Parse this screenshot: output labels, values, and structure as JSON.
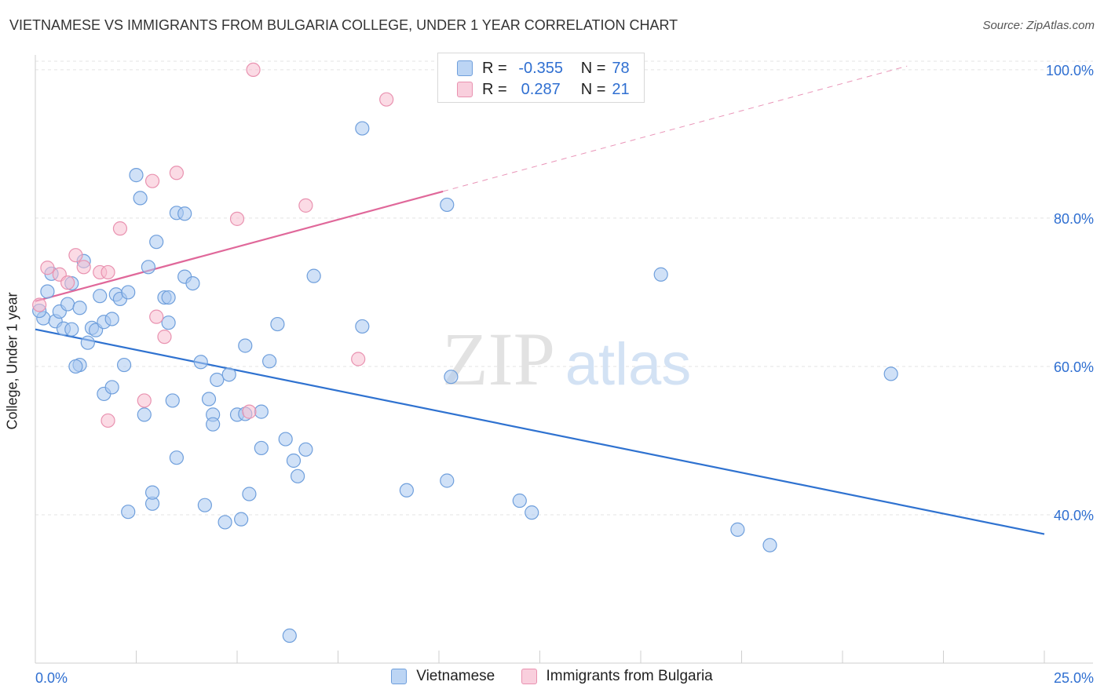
{
  "title": "VIETNAMESE VS IMMIGRANTS FROM BULGARIA COLLEGE, UNDER 1 YEAR CORRELATION CHART",
  "source": "Source: ZipAtlas.com",
  "watermark": {
    "zip": "ZIP",
    "atlas": "atlas"
  },
  "legend_top": {
    "rows": [
      {
        "r_label": "R =",
        "r_value": "-0.355",
        "n_label": "N =",
        "n_value": "78",
        "color": "#a9c8f0",
        "border": "#6f9fdc"
      },
      {
        "r_label": "R =",
        "r_value": "0.287",
        "n_label": "N =",
        "n_value": "21",
        "color": "#f7bdd0",
        "border": "#e992b0"
      }
    ]
  },
  "chart_data": {
    "type": "scatter",
    "title": "VIETNAMESE VS IMMIGRANTS FROM BULGARIA COLLEGE, UNDER 1 YEAR CORRELATION CHART",
    "xlabel": "",
    "ylabel": "College, Under 1 year",
    "xlim": [
      0,
      25
    ],
    "ylim": [
      20,
      102
    ],
    "x_tick_labels": [
      "0.0%",
      "25.0%"
    ],
    "y_ticks": [
      40,
      60,
      80,
      100
    ],
    "y_tick_labels": [
      "40.0%",
      "60.0%",
      "80.0%",
      "100.0%"
    ],
    "grid": true,
    "series": [
      {
        "name": "Vietnamese",
        "color": "#a9c8f0",
        "stroke": "#6f9fdc",
        "trend_color": "#2f72d0",
        "trend": {
          "x0": 0,
          "y0": 65.0,
          "x1": 25,
          "y1": 37.4
        },
        "points": [
          [
            0.2,
            66.5
          ],
          [
            0.3,
            70.1
          ],
          [
            0.4,
            72.5
          ],
          [
            0.5,
            66.1
          ],
          [
            0.6,
            67.4
          ],
          [
            0.7,
            65.1
          ],
          [
            0.8,
            68.4
          ],
          [
            0.9,
            65.0
          ],
          [
            0.9,
            71.2
          ],
          [
            1.1,
            60.2
          ],
          [
            1.1,
            67.9
          ],
          [
            1.2,
            74.2
          ],
          [
            1.3,
            63.2
          ],
          [
            1.4,
            65.2
          ],
          [
            1.5,
            64.9
          ],
          [
            1.6,
            69.5
          ],
          [
            1.7,
            66.0
          ],
          [
            1.7,
            56.3
          ],
          [
            1.9,
            66.4
          ],
          [
            1.9,
            57.2
          ],
          [
            2.0,
            69.7
          ],
          [
            2.1,
            69.1
          ],
          [
            2.2,
            60.2
          ],
          [
            2.3,
            70.0
          ],
          [
            2.3,
            40.4
          ],
          [
            2.5,
            85.8
          ],
          [
            2.6,
            82.7
          ],
          [
            2.7,
            53.5
          ],
          [
            2.8,
            73.4
          ],
          [
            2.9,
            41.5
          ],
          [
            2.9,
            43.0
          ],
          [
            3.0,
            76.8
          ],
          [
            3.2,
            69.3
          ],
          [
            3.3,
            69.3
          ],
          [
            3.3,
            65.9
          ],
          [
            3.4,
            55.4
          ],
          [
            3.5,
            47.7
          ],
          [
            3.5,
            80.7
          ],
          [
            3.7,
            80.6
          ],
          [
            3.7,
            72.1
          ],
          [
            3.9,
            71.2
          ],
          [
            4.1,
            60.6
          ],
          [
            4.2,
            41.3
          ],
          [
            4.3,
            55.6
          ],
          [
            4.4,
            53.5
          ],
          [
            4.4,
            52.2
          ],
          [
            4.5,
            58.2
          ],
          [
            4.7,
            39.0
          ],
          [
            4.8,
            58.9
          ],
          [
            5.0,
            53.5
          ],
          [
            5.1,
            39.4
          ],
          [
            5.2,
            53.6
          ],
          [
            5.2,
            62.8
          ],
          [
            5.3,
            42.8
          ],
          [
            5.6,
            49.0
          ],
          [
            5.6,
            53.9
          ],
          [
            5.8,
            60.7
          ],
          [
            6.0,
            65.7
          ],
          [
            6.2,
            50.2
          ],
          [
            6.3,
            23.7
          ],
          [
            6.4,
            47.3
          ],
          [
            6.5,
            45.2
          ],
          [
            6.7,
            48.8
          ],
          [
            6.9,
            72.2
          ],
          [
            8.1,
            92.1
          ],
          [
            8.1,
            65.4
          ],
          [
            9.2,
            43.3
          ],
          [
            10.2,
            81.8
          ],
          [
            10.3,
            58.6
          ],
          [
            10.2,
            44.6
          ],
          [
            12.0,
            41.9
          ],
          [
            12.3,
            40.3
          ],
          [
            15.5,
            72.4
          ],
          [
            17.4,
            38.0
          ],
          [
            18.2,
            35.9
          ],
          [
            21.2,
            59.0
          ],
          [
            0.1,
            67.5
          ],
          [
            1.0,
            60.0
          ]
        ]
      },
      {
        "name": "Immigrants from Bulgaria",
        "color": "#f7bdd0",
        "stroke": "#e992b0",
        "trend_color": "#e0689a",
        "trend": {
          "x0": 0,
          "y0": 68.8,
          "x1": 10.1,
          "y1": 83.6
        },
        "trend_dashed_to": {
          "x": 21.6,
          "y": 100.5
        },
        "points": [
          [
            0.1,
            68.3
          ],
          [
            0.3,
            73.3
          ],
          [
            0.6,
            72.4
          ],
          [
            0.8,
            71.3
          ],
          [
            1.0,
            75.0
          ],
          [
            1.2,
            73.4
          ],
          [
            1.6,
            72.7
          ],
          [
            1.8,
            52.7
          ],
          [
            2.1,
            78.6
          ],
          [
            2.7,
            55.4
          ],
          [
            2.9,
            85.0
          ],
          [
            3.0,
            66.7
          ],
          [
            3.2,
            64.0
          ],
          [
            3.5,
            86.1
          ],
          [
            5.0,
            79.9
          ],
          [
            5.3,
            53.9
          ],
          [
            5.4,
            100.0
          ],
          [
            6.7,
            81.7
          ],
          [
            8.0,
            61.0
          ],
          [
            8.7,
            96.0
          ],
          [
            1.8,
            72.7
          ]
        ]
      }
    ]
  },
  "bottom_legend": [
    {
      "label": "Vietnamese",
      "color": "#a9c8f0",
      "border": "#6f9fdc"
    },
    {
      "label": "Immigrants from Bulgaria",
      "color": "#f7bdd0",
      "border": "#e992b0"
    }
  ]
}
